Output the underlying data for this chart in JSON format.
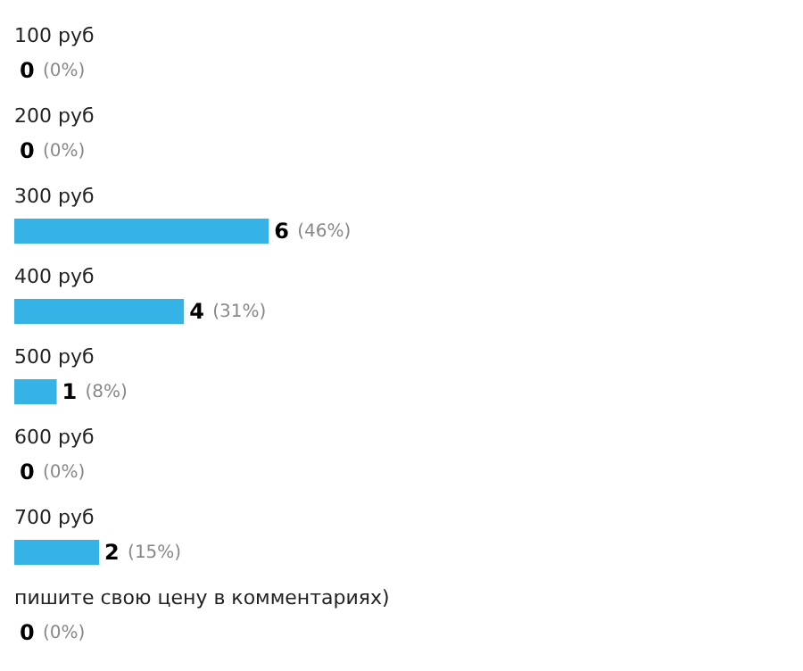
{
  "chart_data": {
    "type": "bar",
    "orientation": "horizontal",
    "categories": [
      "100 руб",
      "200 руб",
      "300 руб",
      "400 руб",
      "500 руб",
      "600 руб",
      "700 руб",
      "пишите свою цену в комментариях)"
    ],
    "values": [
      0,
      0,
      6,
      4,
      1,
      0,
      2,
      0
    ],
    "data_labels": true,
    "annotations": [
      {
        "text": "(0%)",
        "x": 0,
        "y": "100 руб"
      },
      {
        "text": "(0%)",
        "x": 0,
        "y": "200 руб"
      },
      {
        "text": "(46%)",
        "x": 6,
        "y": "300 руб"
      },
      {
        "text": "(31%)",
        "x": 4,
        "y": "400 руб"
      },
      {
        "text": "(8%)",
        "x": 1,
        "y": "500 руб"
      },
      {
        "text": "(0%)",
        "x": 0,
        "y": "600 руб"
      },
      {
        "text": "(15%)",
        "x": 2,
        "y": "700 руб"
      },
      {
        "text": "(0%)",
        "x": 0,
        "y": "пишите свою цену в комментариях)"
      }
    ],
    "color": "#35b2e6"
  }
}
